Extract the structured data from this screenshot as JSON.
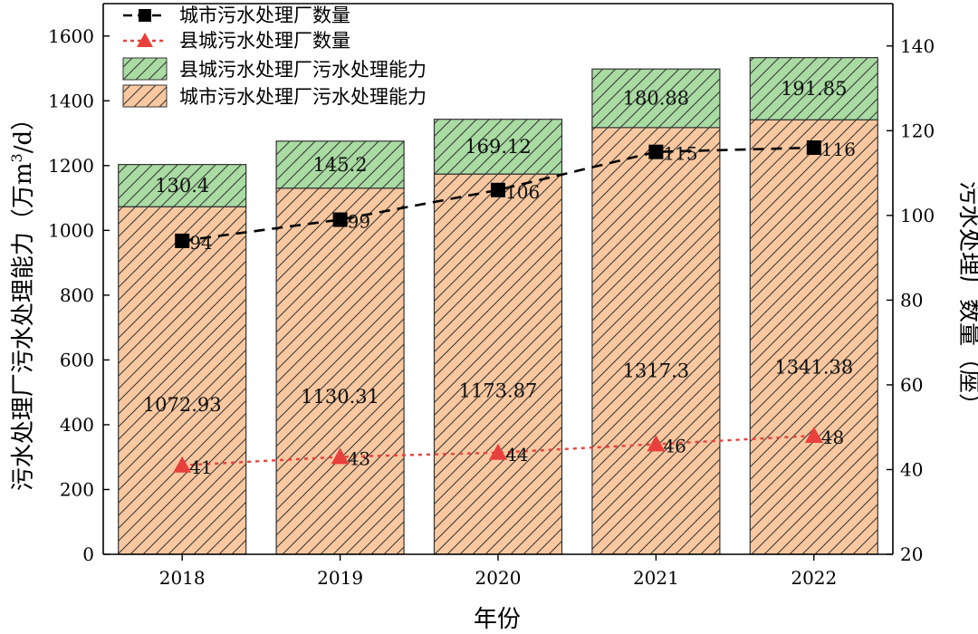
{
  "chart_data": {
    "type": "bar",
    "stacked": true,
    "categories": [
      "2018",
      "2019",
      "2020",
      "2021",
      "2022"
    ],
    "xlabel": "年份",
    "ylabel_left": "污水处理厂污水处理能力（万m³/d）",
    "ylabel_left_parts": {
      "main": "污水处理厂污水处理能力（万m",
      "sup": "3",
      "tail": "/d）"
    },
    "ylabel_right": "污水处理厂数量（座）",
    "ylim_left": [
      0,
      1700
    ],
    "yticks_left": [
      0,
      200,
      400,
      600,
      800,
      1000,
      1200,
      1400,
      1600
    ],
    "ylim_right": [
      20,
      150
    ],
    "yticks_right": [
      20,
      40,
      60,
      80,
      100,
      120,
      140
    ],
    "legend_position": "top-left",
    "bar_series": [
      {
        "name": "城市污水处理厂污水处理能力",
        "axis": "left",
        "color": "#f9c8a0",
        "hatch": "#333333",
        "values": [
          1072.93,
          1130.31,
          1173.87,
          1317.3,
          1341.38
        ],
        "labels": [
          "1072.93",
          "1130.31",
          "1173.87",
          "1317.3",
          "1341.38"
        ]
      },
      {
        "name": "县城污水处理厂污水处理能力",
        "axis": "left",
        "color": "#a9dba3",
        "hatch": "#333333",
        "values": [
          130.4,
          145.2,
          169.12,
          180.88,
          191.85
        ],
        "labels": [
          "130.4",
          "145.2",
          "169.12",
          "180.88",
          "191.85"
        ]
      }
    ],
    "line_series": [
      {
        "name": "城市污水处理厂数量",
        "axis": "right",
        "type": "line",
        "style": "dashed",
        "marker": "square",
        "color": "#000000",
        "values": [
          94,
          99,
          106,
          115,
          116
        ],
        "labels": [
          "94",
          "99",
          "106",
          "115",
          "116"
        ]
      },
      {
        "name": "县城污水处理厂数量",
        "axis": "right",
        "type": "line",
        "style": "dotted",
        "marker": "triangle",
        "color": "#e8413d",
        "values": [
          41,
          43,
          44,
          46,
          48
        ],
        "labels": [
          "41",
          "43",
          "44",
          "46",
          "48"
        ]
      }
    ]
  }
}
